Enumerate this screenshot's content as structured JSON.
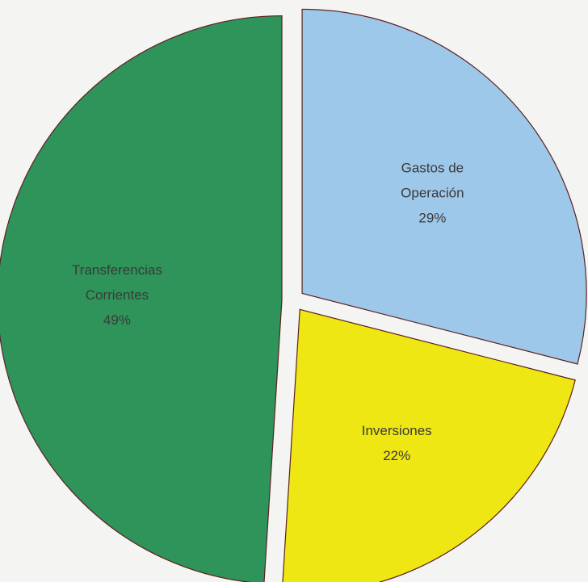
{
  "chart_data": {
    "type": "pie",
    "title": "",
    "exploded": true,
    "labels_inside": true,
    "legend": "none",
    "slices": [
      {
        "label_lines": [
          "Gastos de",
          "Operación"
        ],
        "label": "Gastos de Operación",
        "value": 29,
        "value_label": "29%",
        "color": "#9ec8ea"
      },
      {
        "label_lines": [
          "Inversiones"
        ],
        "label": "Inversiones",
        "value": 22,
        "value_label": "22%",
        "color": "#efe713"
      },
      {
        "label_lines": [
          "Transferencias",
          "Corrientes"
        ],
        "label": "Transferencias Corrientes",
        "value": 49,
        "value_label": "49%",
        "color": "#2e9459"
      }
    ]
  }
}
